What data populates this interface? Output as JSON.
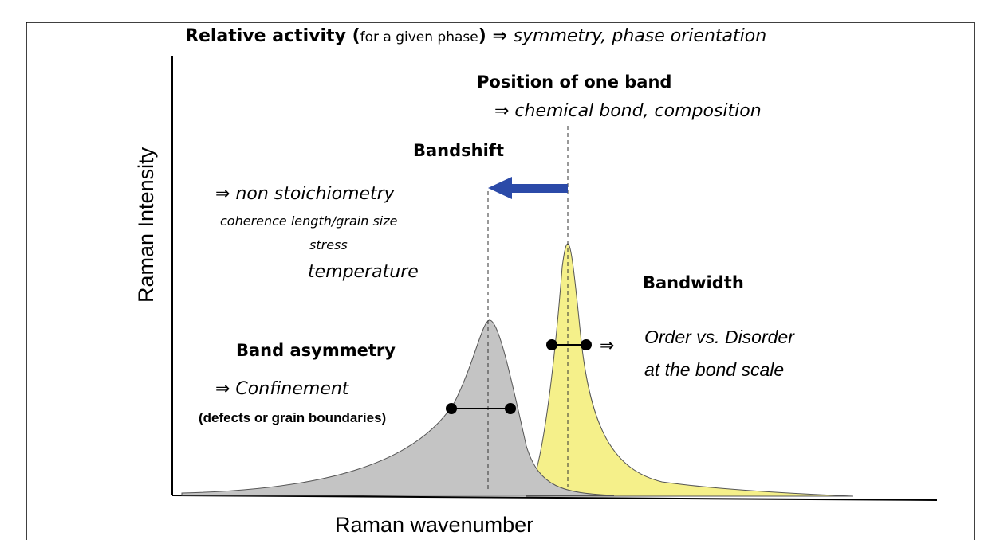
{
  "header": {
    "part1": "Relative activity (",
    "part2": "for a given phase",
    "part3": ") ⇒ ",
    "part4": "symmetry, phase orientation"
  },
  "axes": {
    "y_label": "Raman Intensity",
    "x_label": "Raman wavenumber"
  },
  "position": {
    "title": "Position of one band",
    "effect": "⇒ chemical bond, composition"
  },
  "bandshift": {
    "title": "Bandshift",
    "effects": [
      "⇒  non stoichiometry",
      "coherence length/grain size",
      "stress",
      "temperature"
    ]
  },
  "bandwidth": {
    "title": "Bandwidth",
    "arrow": "⇒",
    "effects": [
      "Order vs. Disorder",
      "at the bond scale"
    ]
  },
  "asymmetry": {
    "title": "Band asymmetry",
    "effect": "⇒   Confinement",
    "note": "(defects or grain boundaries)"
  }
}
